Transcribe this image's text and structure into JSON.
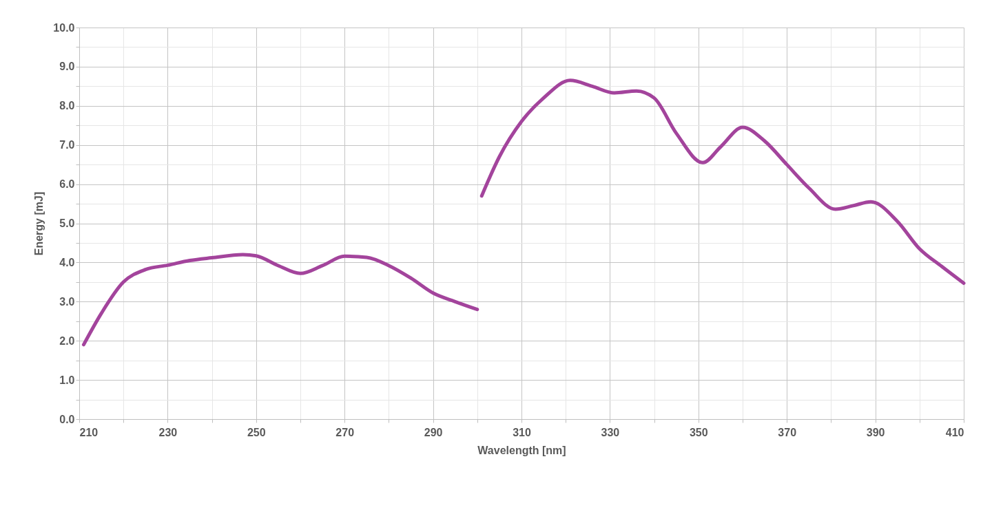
{
  "chart_data": {
    "type": "line",
    "xlabel": "Wavelength [nm]",
    "ylabel": "Energy [mJ]",
    "x": [
      211,
      215,
      220,
      225,
      230,
      235,
      240,
      247,
      250,
      255,
      260,
      265,
      270,
      275,
      280,
      285,
      290,
      295,
      300,
      300.5,
      301,
      305,
      310,
      315,
      321,
      326,
      331,
      336,
      340,
      345,
      351,
      355,
      360,
      365,
      370,
      375,
      381,
      385,
      389,
      395,
      400,
      405,
      410
    ],
    "series": [
      {
        "color": "#a3449c",
        "values": [
          1.9,
          2.7,
          3.5,
          3.82,
          3.93,
          4.05,
          4.12,
          4.2,
          4.17,
          3.92,
          3.72,
          3.92,
          4.16,
          4.13,
          3.92,
          3.6,
          3.22,
          3.0,
          2.8,
          null,
          5.7,
          6.7,
          7.6,
          8.2,
          8.65,
          8.5,
          8.33,
          8.38,
          8.2,
          7.3,
          6.55,
          6.95,
          7.45,
          7.1,
          6.5,
          5.9,
          5.36,
          5.45,
          5.55,
          5.05,
          4.35,
          3.9,
          3.47
        ]
      }
    ],
    "xlim": [
      210,
      410
    ],
    "xticks": [
      210,
      {
        "value": 220,
        "label": null
      },
      230,
      {
        "value": 240,
        "label": null
      },
      250,
      {
        "value": 260,
        "label": null
      },
      270,
      {
        "value": 280,
        "label": null
      },
      290,
      {
        "value": 300,
        "label": null
      },
      310,
      {
        "value": 320,
        "label": null
      },
      330,
      {
        "value": 340,
        "label": null
      },
      350,
      {
        "value": 360,
        "label": null
      },
      370,
      {
        "value": 380,
        "label": null
      },
      390,
      {
        "value": 400,
        "label": null
      },
      410
    ],
    "ylim": [
      0,
      10
    ],
    "yticks": [
      {
        "value": 0,
        "label": "0.0"
      },
      {
        "value": 0.5,
        "label": null
      },
      {
        "value": 1,
        "label": "1.0"
      },
      {
        "value": 1.5,
        "label": null
      },
      {
        "value": 2,
        "label": "2.0"
      },
      {
        "value": 2.5,
        "label": null
      },
      {
        "value": 3,
        "label": "3.0"
      },
      {
        "value": 3.5,
        "label": null
      },
      {
        "value": 4,
        "label": "4.0"
      },
      {
        "value": 4.5,
        "label": null
      },
      {
        "value": 5,
        "label": "5.0"
      },
      {
        "value": 5.5,
        "label": null
      },
      {
        "value": 6,
        "label": "6.0"
      },
      {
        "value": 6.5,
        "label": null
      },
      {
        "value": 7,
        "label": "7.0"
      },
      {
        "value": 7.5,
        "label": null
      },
      {
        "value": 8,
        "label": "8.0"
      },
      {
        "value": 8.5,
        "label": null
      },
      {
        "value": 9,
        "label": "9.0"
      },
      {
        "value": 9.5,
        "label": null
      },
      {
        "value": 10,
        "label": "10.0"
      }
    ],
    "grid": true,
    "marker": "none",
    "line_style": "solid"
  }
}
